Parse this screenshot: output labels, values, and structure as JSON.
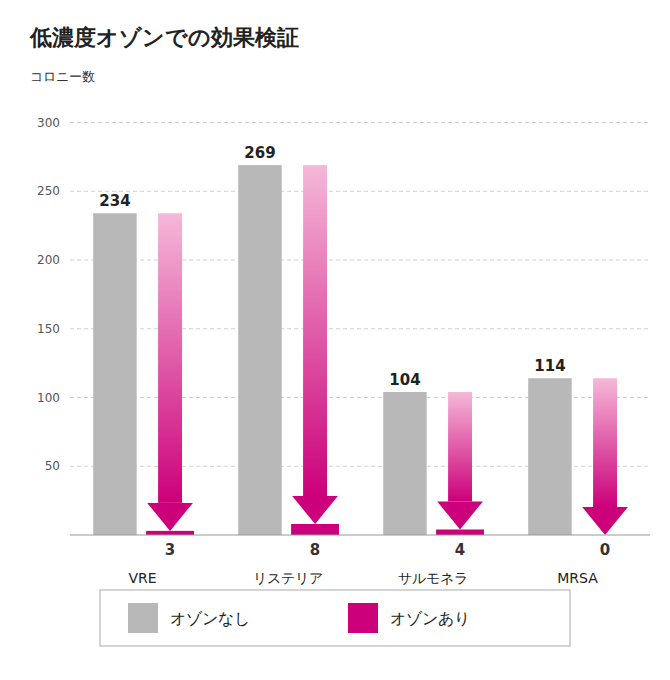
{
  "chart_data": {
    "type": "bar",
    "title": "低濃度オゾンでの効果検証",
    "ylabel": "コロニー数",
    "categories": [
      "VRE",
      "リステリア",
      "サルモネラ",
      "MRSA"
    ],
    "series": [
      {
        "name": "オゾンなし",
        "color": "#b8b8b8",
        "values": [
          234,
          269,
          104,
          114
        ]
      },
      {
        "name": "オゾンあり",
        "color": "#cc007a",
        "values": [
          3,
          8,
          4,
          0
        ]
      }
    ],
    "ylim": [
      0,
      320
    ],
    "yticks": [
      50,
      100,
      150,
      200,
      250,
      300
    ],
    "grid": true,
    "legend": "bottom",
    "data_labels": true
  }
}
